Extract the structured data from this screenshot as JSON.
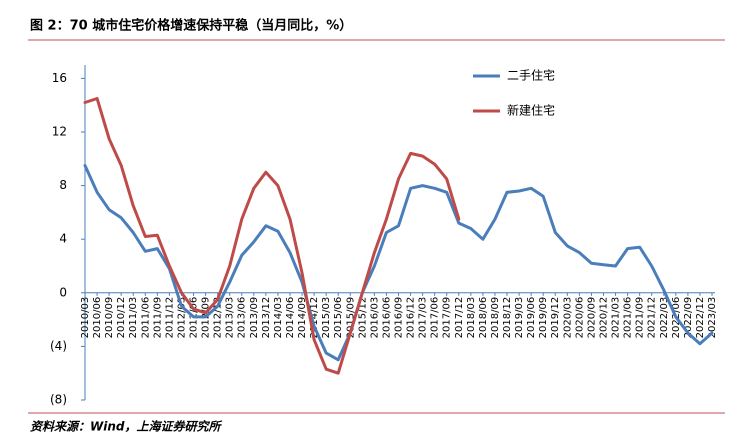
{
  "chart_data": {
    "type": "line",
    "title": "图 2：70 城市住宅价格增速保持平稳（当月同比，%）",
    "source": "资料来源：Wind，上海证券研究所",
    "categories": [
      "2010/03",
      "2010/06",
      "2010/09",
      "2010/12",
      "2011/03",
      "2011/06",
      "2011/09",
      "2011/12",
      "2012/03",
      "2012/06",
      "2012/09",
      "2012/12",
      "2013/03",
      "2013/06",
      "2013/09",
      "2013/12",
      "2014/03",
      "2014/06",
      "2014/09",
      "2014/12",
      "2015/03",
      "2015/06",
      "2015/09",
      "2015/12",
      "2016/03",
      "2016/06",
      "2016/09",
      "2016/12",
      "2017/03",
      "2017/06",
      "2017/09",
      "2017/12",
      "2018/03",
      "2018/06",
      "2018/09",
      "2018/12",
      "2019/03",
      "2019/06",
      "2019/09",
      "2019/12",
      "2020/03",
      "2020/06",
      "2020/09",
      "2020/12",
      "2021/03",
      "2021/06",
      "2021/09",
      "2021/12",
      "2022/03",
      "2022/06",
      "2022/09",
      "2022/12",
      "2023/03"
    ],
    "series": [
      {
        "name": "二手住宅",
        "color": "#4a7ebb",
        "values": [
          9.5,
          7.5,
          6.2,
          5.6,
          4.5,
          3.1,
          3.3,
          1.8,
          -1.0,
          -1.8,
          -1.8,
          -1.0,
          0.8,
          2.8,
          3.8,
          5.0,
          4.6,
          3.0,
          0.8,
          -2.5,
          -4.5,
          -5.0,
          -3.0,
          0.0,
          2.0,
          4.5,
          5.0,
          7.8,
          8.0,
          7.8,
          7.5,
          5.2,
          4.8,
          4.0,
          5.5,
          7.5,
          7.6,
          7.8,
          7.2,
          4.5,
          3.5,
          3.0,
          2.2,
          2.1,
          2.0,
          3.3,
          3.4,
          2.0,
          0.2,
          -1.8,
          -3.0,
          -3.8,
          -3.0
        ]
      },
      {
        "name": "新建住宅",
        "color": "#be4b48",
        "values": [
          14.2,
          14.5,
          11.5,
          9.5,
          6.5,
          4.2,
          4.3,
          2.0,
          0.0,
          -1.2,
          -1.5,
          -0.5,
          2.0,
          5.5,
          7.8,
          9.0,
          8.0,
          5.5,
          1.5,
          -3.5,
          -5.7,
          -6.0,
          -3.0,
          0.0,
          3.0,
          5.5,
          8.5,
          10.4,
          10.2,
          9.6,
          8.5,
          5.5,
          null,
          null,
          null,
          null,
          null,
          null,
          null,
          null,
          null,
          null,
          null,
          null,
          null,
          null,
          null,
          null,
          null,
          null,
          null,
          null,
          null
        ]
      }
    ],
    "ylim": [
      -8,
      17
    ],
    "yticks": [
      {
        "value": -8,
        "label": "(8)"
      },
      {
        "value": -4,
        "label": "(4)"
      },
      0,
      4,
      8,
      12,
      16
    ],
    "legend": "upper-right"
  }
}
